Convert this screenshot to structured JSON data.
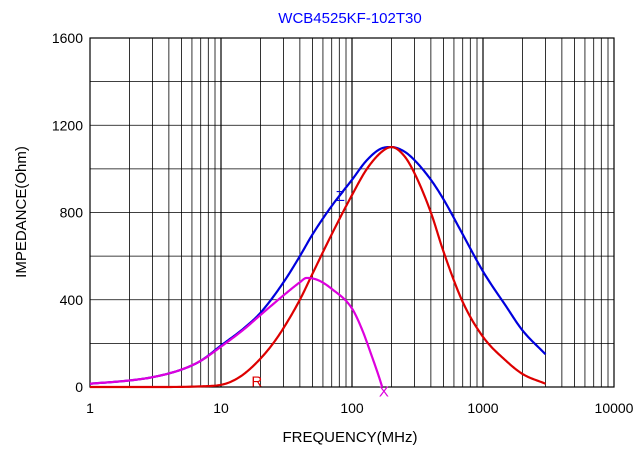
{
  "chart_data": {
    "type": "line",
    "title": "WCB4525KF-102T30",
    "xlabel": "FREQUENCY(MHz)",
    "ylabel": "IMPEDANCE(Ohm)",
    "xscale": "log",
    "xlim": [
      1,
      10000
    ],
    "ylim": [
      0,
      1600
    ],
    "x_ticks": [
      1,
      10,
      100,
      1000,
      10000
    ],
    "x_tick_labels": [
      "1",
      "10",
      "100",
      "1000",
      "10000"
    ],
    "y_ticks": [
      0,
      400,
      800,
      1200,
      1600
    ],
    "y_tick_labels": [
      "0",
      "400",
      "800",
      "1200",
      "1600"
    ],
    "grid": true,
    "legend": "none",
    "series": [
      {
        "name": "Z",
        "color": "#0000dd",
        "points": [
          [
            1,
            15
          ],
          [
            2,
            30
          ],
          [
            3,
            45
          ],
          [
            5,
            80
          ],
          [
            7,
            120
          ],
          [
            10,
            190
          ],
          [
            15,
            270
          ],
          [
            20,
            340
          ],
          [
            30,
            480
          ],
          [
            40,
            600
          ],
          [
            50,
            700
          ],
          [
            70,
            830
          ],
          [
            100,
            950
          ],
          [
            130,
            1040
          ],
          [
            170,
            1095
          ],
          [
            200,
            1100
          ],
          [
            250,
            1080
          ],
          [
            300,
            1040
          ],
          [
            400,
            950
          ],
          [
            500,
            860
          ],
          [
            700,
            700
          ],
          [
            1000,
            530
          ],
          [
            1500,
            370
          ],
          [
            2000,
            260
          ],
          [
            3000,
            150
          ]
        ]
      },
      {
        "name": "R",
        "color": "#dd0000",
        "points": [
          [
            1,
            0
          ],
          [
            3,
            0
          ],
          [
            7,
            3
          ],
          [
            10,
            10
          ],
          [
            12,
            25
          ],
          [
            15,
            60
          ],
          [
            20,
            130
          ],
          [
            25,
            200
          ],
          [
            30,
            270
          ],
          [
            40,
            400
          ],
          [
            50,
            520
          ],
          [
            70,
            700
          ],
          [
            100,
            880
          ],
          [
            130,
            1000
          ],
          [
            170,
            1080
          ],
          [
            200,
            1100
          ],
          [
            250,
            1060
          ],
          [
            300,
            980
          ],
          [
            400,
            800
          ],
          [
            500,
            620
          ],
          [
            700,
            390
          ],
          [
            1000,
            230
          ],
          [
            1500,
            120
          ],
          [
            2000,
            60
          ],
          [
            3000,
            15
          ]
        ]
      },
      {
        "name": "X",
        "color": "#dd00dd",
        "points": [
          [
            1,
            15
          ],
          [
            2,
            30
          ],
          [
            3,
            45
          ],
          [
            5,
            80
          ],
          [
            7,
            120
          ],
          [
            10,
            185
          ],
          [
            15,
            265
          ],
          [
            20,
            330
          ],
          [
            30,
            420
          ],
          [
            40,
            480
          ],
          [
            45,
            500
          ],
          [
            55,
            490
          ],
          [
            70,
            450
          ],
          [
            100,
            360
          ],
          [
            120,
            260
          ],
          [
            140,
            150
          ],
          [
            160,
            50
          ],
          [
            170,
            0
          ]
        ]
      }
    ]
  }
}
